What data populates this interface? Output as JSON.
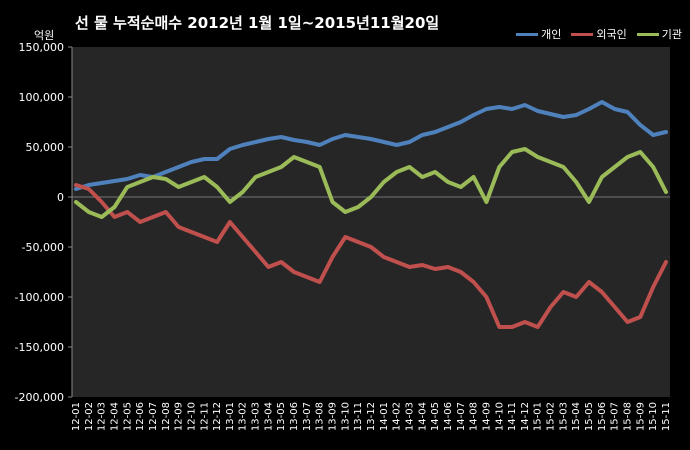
{
  "chart_data": {
    "type": "line",
    "title": "선 물 누적순매수 2012년 1월 1일~2015년11월20일",
    "ylabel": "억원",
    "ylim": [
      -200000,
      150000
    ],
    "yticks": [
      "150,000",
      "100,000",
      "50,000",
      "0",
      "-50,000",
      "-100,000",
      "-150,000",
      "-200,000"
    ],
    "ytick_values": [
      150000,
      100000,
      50000,
      0,
      -50000,
      -100000,
      -150000,
      -200000
    ],
    "categories": [
      "12-01",
      "12-02",
      "12-03",
      "12-04",
      "12-05",
      "12-06",
      "12-07",
      "12-08",
      "12-09",
      "12-10",
      "12-11",
      "12-12",
      "13-01",
      "13-02",
      "13-03",
      "13-04",
      "13-05",
      "13-06",
      "13-07",
      "13-08",
      "13-09",
      "13-10",
      "13-11",
      "13-12",
      "14-01",
      "14-02",
      "14-03",
      "14-04",
      "14-05",
      "14-06",
      "14-07",
      "14-08",
      "14-09",
      "14-10",
      "14-11",
      "14-12",
      "15-01",
      "15-02",
      "15-03",
      "15-04",
      "15-05",
      "15-06",
      "15-07",
      "15-08",
      "15-09",
      "15-10",
      "15-11"
    ],
    "legend_position": "top-right",
    "grid": false,
    "series": [
      {
        "name": "개인",
        "color": "#4F81BD",
        "values": [
          8000,
          12000,
          14000,
          16000,
          18000,
          22000,
          20000,
          25000,
          30000,
          35000,
          38000,
          38000,
          48000,
          52000,
          55000,
          58000,
          60000,
          57000,
          55000,
          52000,
          58000,
          62000,
          60000,
          58000,
          55000,
          52000,
          55000,
          62000,
          65000,
          70000,
          75000,
          82000,
          88000,
          90000,
          88000,
          92000,
          86000,
          83000,
          80000,
          82000,
          88000,
          95000,
          88000,
          85000,
          72000,
          62000,
          65000
        ]
      },
      {
        "name": "외국인",
        "color": "#C0504D",
        "values": [
          12000,
          8000,
          -5000,
          -20000,
          -15000,
          -25000,
          -20000,
          -15000,
          -30000,
          -35000,
          -40000,
          -45000,
          -25000,
          -40000,
          -55000,
          -70000,
          -65000,
          -75000,
          -80000,
          -85000,
          -60000,
          -40000,
          -45000,
          -50000,
          -60000,
          -65000,
          -70000,
          -68000,
          -72000,
          -70000,
          -75000,
          -85000,
          -100000,
          -130000,
          -130000,
          -125000,
          -130000,
          -110000,
          -95000,
          -100000,
          -85000,
          -95000,
          -110000,
          -125000,
          -120000,
          -90000,
          -65000
        ]
      },
      {
        "name": "기관",
        "color": "#9BBB59",
        "values": [
          -5000,
          -15000,
          -20000,
          -10000,
          10000,
          15000,
          20000,
          18000,
          10000,
          15000,
          20000,
          10000,
          -5000,
          5000,
          20000,
          25000,
          30000,
          40000,
          35000,
          30000,
          -5000,
          -15000,
          -10000,
          0,
          15000,
          25000,
          30000,
          20000,
          25000,
          15000,
          10000,
          20000,
          -5000,
          30000,
          45000,
          48000,
          40000,
          35000,
          30000,
          15000,
          -5000,
          20000,
          30000,
          40000,
          45000,
          30000,
          5000
        ]
      }
    ]
  }
}
